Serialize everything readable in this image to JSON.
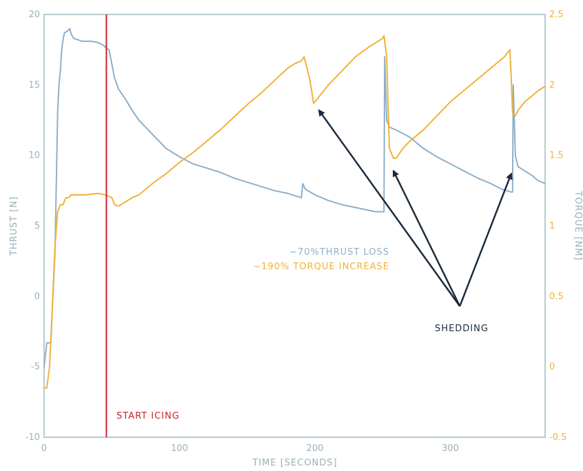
{
  "colors": {
    "thrust": "#8eafc9",
    "torque": "#f0b23a",
    "start_icing": "#c8242b",
    "arrow": "#1c2b3d",
    "axis": "#b5cbcf",
    "tick_text": "#9ab0b8"
  },
  "chart_data": {
    "type": "line",
    "xlabel": "TIME [SECONDS]",
    "ylabel_left": "THRUST [N]",
    "ylabel_right": "TORQUE [NM]",
    "xlim": [
      0,
      370
    ],
    "ylim_left": [
      -10,
      20
    ],
    "ylim_right": [
      -0.5,
      2.5
    ],
    "xticks": [
      0,
      100,
      200,
      300
    ],
    "xtick_labels": [
      "0",
      "100",
      "200",
      "300"
    ],
    "yticks_left": [
      -10,
      -5,
      0,
      5,
      10,
      15,
      20
    ],
    "ytick_labels_left": [
      "-10",
      "-5",
      "0",
      "5",
      "10",
      "15",
      "20"
    ],
    "yticks_right": [
      -0.5,
      0,
      0.5,
      1,
      1.5,
      2,
      2.5
    ],
    "ytick_labels_right": [
      "-0.5",
      "0",
      "0.5",
      "1",
      "1.5",
      "2",
      "2.5"
    ],
    "series": [
      {
        "axis": "left",
        "x": [
          0,
          2,
          3,
          5,
          6,
          8,
          9,
          10,
          11,
          12,
          13,
          14,
          15,
          17,
          19,
          20,
          22,
          25,
          28,
          31,
          35,
          40,
          42,
          44,
          46,
          48,
          50,
          52,
          55,
          60,
          65,
          70,
          75,
          80,
          85,
          90,
          95,
          100,
          110,
          120,
          130,
          140,
          150,
          160,
          170,
          180,
          190,
          191,
          193,
          200,
          210,
          220,
          230,
          240,
          245,
          250,
          251,
          251.5,
          253,
          255,
          260,
          270,
          280,
          290,
          300,
          310,
          320,
          330,
          338,
          345,
          346,
          346.5,
          348,
          350,
          355,
          360,
          365,
          370
        ],
        "y": [
          -5,
          -3.3,
          -3.3,
          -3.3,
          -1,
          3,
          8,
          13,
          15,
          16,
          17.5,
          18.2,
          18.7,
          18.8,
          19,
          18.6,
          18.3,
          18.2,
          18.1,
          18.1,
          18.1,
          18,
          17.9,
          17.8,
          17.6,
          17.5,
          16.5,
          15.5,
          14.7,
          14,
          13.2,
          12.5,
          12,
          11.5,
          11,
          10.5,
          10.2,
          9.9,
          9.4,
          9.1,
          8.8,
          8.4,
          8.1,
          7.8,
          7.5,
          7.3,
          7,
          8,
          7.6,
          7.2,
          6.8,
          6.5,
          6.3,
          6.1,
          6,
          6,
          6,
          17,
          12.5,
          12,
          11.8,
          11.3,
          10.5,
          9.9,
          9.4,
          8.9,
          8.4,
          8,
          7.6,
          7.4,
          7.4,
          15,
          10,
          9.2,
          8.9,
          8.6,
          8.2,
          8
        ],
        "color": "#8eafc9"
      },
      {
        "axis": "right",
        "x": [
          0,
          2,
          4,
          6,
          8,
          10,
          12,
          14,
          16,
          18,
          20,
          25,
          30,
          40,
          45,
          50,
          52,
          55,
          60,
          65,
          70,
          80,
          90,
          100,
          110,
          120,
          130,
          140,
          150,
          160,
          170,
          180,
          185,
          190,
          192,
          196,
          199,
          200,
          210,
          220,
          230,
          240,
          245,
          250,
          251,
          253,
          255,
          258,
          260,
          265,
          270,
          280,
          290,
          300,
          310,
          320,
          330,
          340,
          344,
          345,
          346,
          348,
          350,
          355,
          360,
          365,
          370
        ],
        "y": [
          -0.15,
          -0.15,
          0,
          0.4,
          0.85,
          1.1,
          1.15,
          1.15,
          1.2,
          1.2,
          1.22,
          1.22,
          1.22,
          1.23,
          1.22,
          1.2,
          1.15,
          1.14,
          1.17,
          1.2,
          1.22,
          1.3,
          1.37,
          1.45,
          1.52,
          1.6,
          1.68,
          1.77,
          1.86,
          1.94,
          2.03,
          2.12,
          2.15,
          2.17,
          2.2,
          2.05,
          1.87,
          1.88,
          2.0,
          2.1,
          2.2,
          2.27,
          2.3,
          2.33,
          2.35,
          2.2,
          1.55,
          1.48,
          1.48,
          1.55,
          1.6,
          1.68,
          1.78,
          1.88,
          1.96,
          2.04,
          2.12,
          2.2,
          2.25,
          2.05,
          1.8,
          1.78,
          1.82,
          1.88,
          1.92,
          1.96,
          1.99
        ],
        "color": "#f0b23a"
      }
    ],
    "start_icing_x": 46,
    "annotations": {
      "thrust_loss": "~70%THRUST LOSS",
      "torque_increase": "~190% TORQUE INCREASE",
      "start_icing": "START ICING",
      "shedding": "SHEDDING"
    },
    "shedding_origin": {
      "x": 307,
      "y_left": -0.7
    },
    "shedding_targets": [
      {
        "x": 203,
        "y_left": 13.2
      },
      {
        "x": 258,
        "y_left": 8.9
      },
      {
        "x": 345,
        "y_left": 8.7
      }
    ],
    "grid": false
  }
}
